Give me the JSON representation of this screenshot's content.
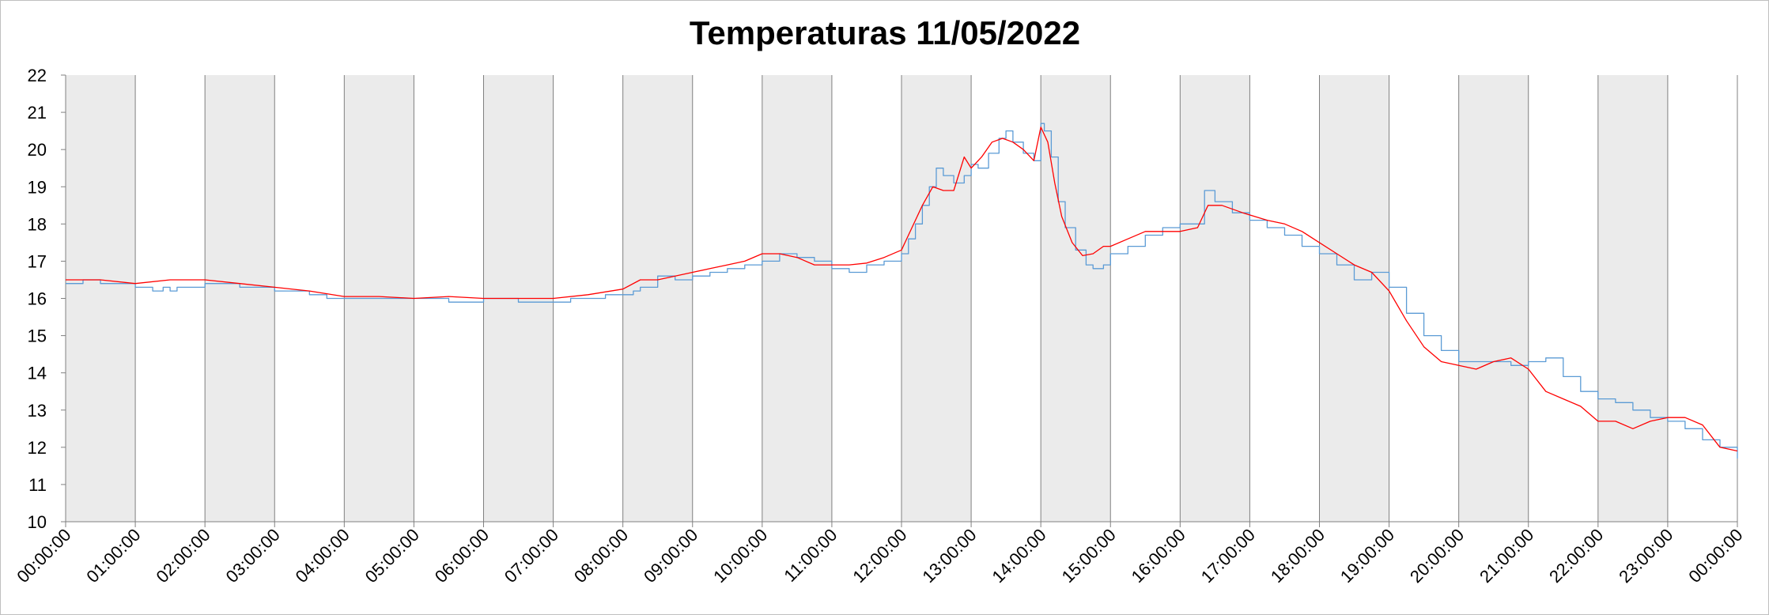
{
  "chart_data": {
    "type": "line",
    "title": "Temperaturas 11/05/2022",
    "xlabel": "",
    "ylabel": "",
    "ylim": [
      10,
      22
    ],
    "yticks": [
      10,
      11,
      12,
      13,
      14,
      15,
      16,
      17,
      18,
      19,
      20,
      21,
      22
    ],
    "xlim": [
      0,
      24
    ],
    "xticks": [
      "00:00:00",
      "01:00:00",
      "02:00:00",
      "03:00:00",
      "04:00:00",
      "05:00:00",
      "06:00:00",
      "07:00:00",
      "08:00:00",
      "09:00:00",
      "10:00:00",
      "11:00:00",
      "12:00:00",
      "13:00:00",
      "14:00:00",
      "15:00:00",
      "16:00:00",
      "17:00:00",
      "18:00:00",
      "19:00:00",
      "20:00:00",
      "21:00:00",
      "22:00:00",
      "23:00:00",
      "00:00:00"
    ],
    "grid": true,
    "legend": "none",
    "background_bands": "alternating hours shaded light grey",
    "colors": {
      "band": "#ebebeb",
      "grid": "#808080",
      "series_blue": "#5b9bd5",
      "series_red": "#ff0000"
    },
    "series": [
      {
        "color": "#5b9bd5",
        "step": true,
        "x": [
          0,
          0.25,
          0.5,
          0.75,
          1.0,
          1.1,
          1.25,
          1.4,
          1.5,
          1.6,
          1.75,
          2.0,
          2.25,
          2.5,
          2.75,
          3.0,
          3.25,
          3.5,
          3.75,
          4.0,
          4.5,
          5.0,
          5.5,
          6.0,
          6.5,
          7.0,
          7.25,
          7.5,
          7.75,
          8.0,
          8.15,
          8.25,
          8.5,
          8.75,
          9.0,
          9.25,
          9.5,
          9.75,
          10.0,
          10.25,
          10.5,
          10.75,
          11.0,
          11.25,
          11.5,
          11.75,
          12.0,
          12.1,
          12.2,
          12.3,
          12.4,
          12.5,
          12.6,
          12.75,
          12.9,
          13.0,
          13.1,
          13.25,
          13.4,
          13.5,
          13.6,
          13.75,
          13.9,
          14.0,
          14.05,
          14.15,
          14.25,
          14.35,
          14.5,
          14.65,
          14.75,
          14.9,
          15.0,
          15.25,
          15.5,
          15.75,
          16.0,
          16.25,
          16.35,
          16.5,
          16.75,
          17.0,
          17.25,
          17.5,
          17.75,
          18.0,
          18.25,
          18.5,
          18.75,
          19.0,
          19.25,
          19.5,
          19.75,
          20.0,
          20.25,
          20.5,
          20.75,
          21.0,
          21.25,
          21.5,
          21.75,
          22.0,
          22.25,
          22.5,
          22.75,
          23.0,
          23.25,
          23.5,
          23.75,
          24.0
        ],
        "y": [
          16.4,
          16.5,
          16.4,
          16.4,
          16.3,
          16.3,
          16.2,
          16.3,
          16.2,
          16.3,
          16.3,
          16.4,
          16.4,
          16.3,
          16.3,
          16.2,
          16.2,
          16.1,
          16.0,
          16.0,
          16.0,
          16.0,
          15.9,
          16.0,
          15.9,
          15.9,
          16.0,
          16.0,
          16.1,
          16.1,
          16.2,
          16.3,
          16.6,
          16.5,
          16.6,
          16.7,
          16.8,
          16.9,
          17.0,
          17.2,
          17.1,
          17.0,
          16.8,
          16.7,
          16.9,
          17.0,
          17.2,
          17.6,
          18.0,
          18.5,
          19.0,
          19.5,
          19.3,
          19.1,
          19.3,
          19.6,
          19.5,
          19.9,
          20.3,
          20.5,
          20.2,
          19.9,
          19.7,
          20.7,
          20.5,
          19.8,
          18.6,
          17.9,
          17.3,
          16.9,
          16.8,
          16.9,
          17.2,
          17.4,
          17.7,
          17.9,
          18.0,
          18.0,
          18.9,
          18.6,
          18.3,
          18.1,
          17.9,
          17.7,
          17.4,
          17.2,
          16.9,
          16.5,
          16.7,
          16.3,
          15.6,
          15.0,
          14.6,
          14.3,
          14.3,
          14.3,
          14.2,
          14.3,
          14.4,
          13.9,
          13.5,
          13.3,
          13.2,
          13.0,
          12.8,
          12.7,
          12.5,
          12.2,
          12.0,
          11.7
        ]
      },
      {
        "color": "#ff0000",
        "step": false,
        "x": [
          0,
          0.5,
          1.0,
          1.5,
          2.0,
          2.5,
          3.0,
          3.5,
          4.0,
          4.5,
          5.0,
          5.5,
          6.0,
          6.5,
          7.0,
          7.5,
          8.0,
          8.25,
          8.5,
          8.75,
          9.0,
          9.25,
          9.5,
          9.75,
          10.0,
          10.25,
          10.5,
          10.75,
          11.0,
          11.25,
          11.5,
          11.75,
          12.0,
          12.15,
          12.3,
          12.45,
          12.6,
          12.75,
          12.9,
          13.0,
          13.15,
          13.3,
          13.45,
          13.6,
          13.75,
          13.9,
          14.0,
          14.1,
          14.2,
          14.3,
          14.45,
          14.6,
          14.75,
          14.9,
          15.0,
          15.25,
          15.5,
          15.75,
          16.0,
          16.25,
          16.4,
          16.6,
          16.9,
          17.25,
          17.5,
          17.75,
          18.0,
          18.25,
          18.5,
          18.75,
          19.0,
          19.25,
          19.5,
          19.75,
          20.0,
          20.25,
          20.5,
          20.75,
          21.0,
          21.25,
          21.5,
          21.75,
          22.0,
          22.25,
          22.5,
          22.75,
          23.0,
          23.25,
          23.5,
          23.75,
          24.0
        ],
        "y": [
          16.5,
          16.5,
          16.4,
          16.5,
          16.5,
          16.4,
          16.3,
          16.2,
          16.05,
          16.05,
          16.0,
          16.05,
          16.0,
          16.0,
          16.0,
          16.1,
          16.25,
          16.5,
          16.5,
          16.6,
          16.7,
          16.8,
          16.9,
          17.0,
          17.2,
          17.2,
          17.1,
          16.9,
          16.9,
          16.9,
          16.95,
          17.1,
          17.3,
          17.9,
          18.5,
          19.0,
          18.9,
          18.9,
          19.8,
          19.5,
          19.8,
          20.2,
          20.3,
          20.2,
          20.0,
          19.7,
          20.6,
          20.2,
          19.1,
          18.2,
          17.5,
          17.15,
          17.2,
          17.4,
          17.4,
          17.6,
          17.8,
          17.8,
          17.8,
          17.9,
          18.5,
          18.5,
          18.3,
          18.1,
          18.0,
          17.8,
          17.5,
          17.2,
          16.9,
          16.7,
          16.2,
          15.4,
          14.7,
          14.3,
          14.2,
          14.1,
          14.3,
          14.4,
          14.1,
          13.5,
          13.3,
          13.1,
          12.7,
          12.7,
          12.5,
          12.7,
          12.8,
          12.8,
          12.6,
          12.0,
          11.9
        ]
      }
    ]
  }
}
